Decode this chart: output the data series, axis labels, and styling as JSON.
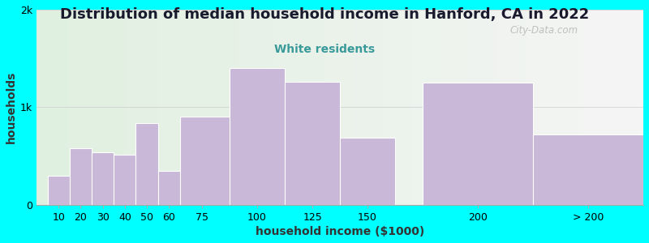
{
  "title": "Distribution of median household income in Hanford, CA in 2022",
  "subtitle": "White residents",
  "xlabel": "household income ($1000)",
  "ylabel": "households",
  "background_color": "#00FFFF",
  "bar_color": "#c9b8d8",
  "bar_edgecolor": "#ffffff",
  "categories": [
    "10",
    "20",
    "30",
    "40",
    "50",
    "60",
    "75",
    "100",
    "125",
    "150",
    "200",
    "> 200"
  ],
  "values": [
    300,
    580,
    540,
    510,
    840,
    350,
    900,
    1400,
    1260,
    690,
    1250,
    720
  ],
  "bar_lefts": [
    5,
    15,
    25,
    35,
    45,
    55,
    65,
    87.5,
    112.5,
    137.5,
    175,
    225
  ],
  "bar_widths": [
    10,
    10,
    10,
    10,
    10,
    10,
    22.5,
    25,
    25,
    25,
    50,
    50
  ],
  "tick_positions": [
    10,
    20,
    30,
    40,
    50,
    60,
    75,
    100,
    125,
    150,
    200
  ],
  "ylim": [
    0,
    2000
  ],
  "yticks": [
    0,
    1000,
    2000
  ],
  "ytick_labels": [
    "0",
    "1k",
    "2k"
  ],
  "title_fontsize": 13,
  "subtitle_fontsize": 10,
  "title_color": "#1a1a2e",
  "subtitle_color": "#3a9a9a",
  "axis_label_fontsize": 10,
  "tick_fontsize": 9,
  "watermark": "City-Data.com",
  "grad_left_color": "#e0f0e0",
  "grad_right_color": "#f5f5f5"
}
